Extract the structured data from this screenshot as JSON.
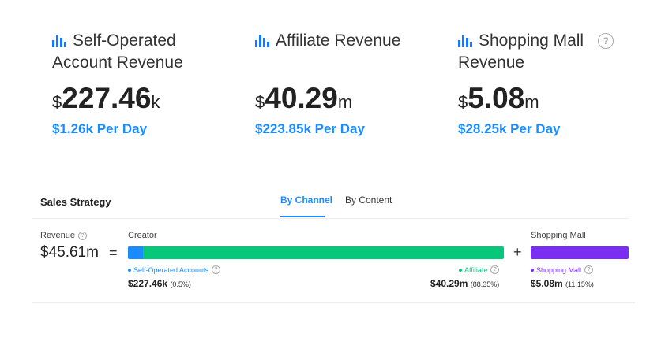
{
  "stats": [
    {
      "title_line1": "Self-Operated",
      "title_line2": "Account Revenue",
      "currency": "$",
      "value": "227.46",
      "unit": "k",
      "per_day": "$1.26k Per Day"
    },
    {
      "title_line1": "Affiliate Revenue",
      "title_line2": "",
      "currency": "$",
      "value": "40.29",
      "unit": "m",
      "per_day": "$223.85k Per Day"
    },
    {
      "title_line1": "Shopping Mall",
      "title_line2": "Revenue",
      "currency": "$",
      "value": "5.08",
      "unit": "m",
      "per_day": "$28.25k Per Day"
    }
  ],
  "strategy": {
    "title": "Sales Strategy",
    "tabs": [
      {
        "label": "By Channel",
        "active": true
      },
      {
        "label": "By Content",
        "active": false
      }
    ],
    "revenue_label": "Revenue",
    "total": "$45.61m",
    "equals": "=",
    "plus": "+",
    "creator_label": "Creator",
    "shopping_mall_label": "Shopping Mall",
    "channels": {
      "self_operated": {
        "label": "Self-Operated Accounts",
        "amount": "$227.46k",
        "pct": "(0.5%)",
        "share": 0.005,
        "color": "#1a8cff"
      },
      "affiliate": {
        "label": "Affiliate",
        "amount": "$40.29m",
        "pct": "(88.35%)",
        "share": 0.8835,
        "color": "#07c77a"
      },
      "shopping_mall": {
        "label": "Shopping Mall",
        "amount": "$5.08m",
        "pct": "(11.15%)",
        "share": 0.1115,
        "color": "#7a2ef0"
      }
    }
  },
  "icons": {
    "stat_icon": "bar-chart-icon",
    "help_icon": "question-circle-icon"
  }
}
